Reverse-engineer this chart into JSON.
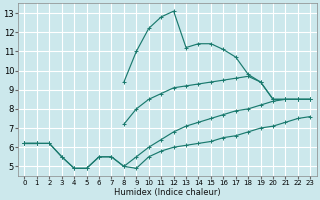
{
  "xlabel": "Humidex (Indice chaleur)",
  "bg_color": "#cce8ec",
  "grid_color": "#ffffff",
  "line_color": "#1a7a6e",
  "xlim": [
    -0.5,
    23.5
  ],
  "ylim": [
    4.5,
    13.5
  ],
  "xticks": [
    0,
    1,
    2,
    3,
    4,
    5,
    6,
    7,
    8,
    9,
    10,
    11,
    12,
    13,
    14,
    15,
    16,
    17,
    18,
    19,
    20,
    21,
    22,
    23
  ],
  "yticks": [
    5,
    6,
    7,
    8,
    9,
    10,
    11,
    12,
    13
  ],
  "curve_main_x": [
    0,
    1,
    2,
    3,
    4,
    5,
    6,
    7,
    8,
    9,
    10,
    11,
    12,
    13,
    14,
    15,
    16,
    17,
    18,
    19,
    20,
    21,
    22,
    23
  ],
  "curve_main_y": [
    6.2,
    6.2,
    null,
    null,
    null,
    null,
    null,
    null,
    9.4,
    11.0,
    12.2,
    12.8,
    13.1,
    11.2,
    11.4,
    11.4,
    11.1,
    10.7,
    9.8,
    9.4,
    8.5,
    8.5,
    8.5,
    8.5
  ],
  "curve_mid_x": [
    0,
    1,
    2,
    3,
    4,
    5,
    6,
    7,
    8,
    9,
    10,
    11,
    12,
    13,
    14,
    15,
    16,
    17,
    18,
    19,
    20,
    21,
    22,
    23
  ],
  "curve_mid_y": [
    6.2,
    6.2,
    null,
    null,
    null,
    null,
    null,
    null,
    7.2,
    8.0,
    8.5,
    8.8,
    9.1,
    9.2,
    9.3,
    9.4,
    9.5,
    9.6,
    9.7,
    9.4,
    8.5,
    8.5,
    8.5,
    8.5
  ],
  "curve_low_x": [
    0,
    1,
    2,
    3,
    4,
    5,
    6,
    7,
    8,
    9,
    10,
    11,
    12,
    13,
    14,
    15,
    16,
    17,
    18,
    19,
    20,
    21,
    22,
    23
  ],
  "curve_low_y": [
    6.2,
    6.2,
    6.2,
    5.5,
    4.9,
    4.9,
    5.5,
    5.5,
    5.0,
    4.9,
    5.5,
    5.8,
    6.0,
    6.1,
    6.2,
    6.3,
    6.5,
    6.6,
    6.8,
    7.0,
    7.1,
    7.3,
    7.5,
    7.6
  ],
  "curve_extra_x": [
    0,
    1,
    2,
    3,
    4,
    5,
    6,
    7,
    8,
    9,
    10,
    11,
    12,
    13,
    14,
    15,
    16,
    17,
    18,
    19,
    20,
    21,
    22,
    23
  ],
  "curve_extra_y": [
    6.2,
    6.2,
    6.2,
    5.5,
    4.9,
    4.9,
    5.5,
    5.5,
    5.0,
    5.5,
    6.0,
    6.4,
    6.8,
    7.1,
    7.3,
    7.5,
    7.7,
    7.9,
    8.0,
    8.2,
    8.4,
    8.5,
    8.5,
    8.5
  ]
}
